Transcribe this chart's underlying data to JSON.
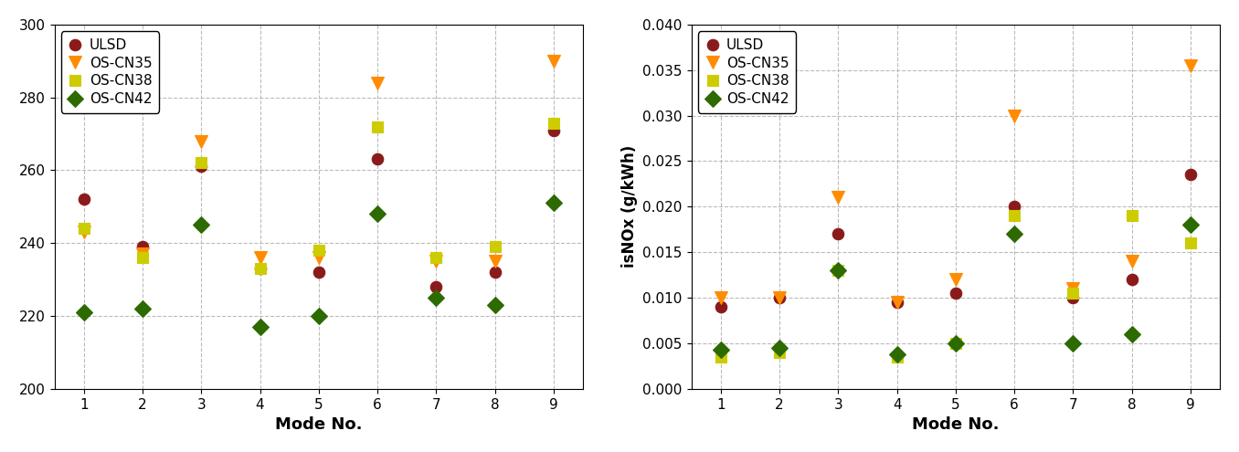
{
  "modes": [
    1,
    2,
    3,
    4,
    5,
    6,
    7,
    8,
    9
  ],
  "left_ylim": [
    200,
    300
  ],
  "left_yticks": [
    200,
    220,
    240,
    260,
    280,
    300
  ],
  "left_data": {
    "ULSD": [
      252,
      239,
      261,
      233,
      232,
      263,
      228,
      232,
      271
    ],
    "OS-CN35": [
      243,
      237,
      268,
      236,
      236,
      284,
      235,
      235,
      290
    ],
    "OS-CN38": [
      244,
      236,
      262,
      233,
      238,
      272,
      236,
      239,
      273
    ],
    "OS-CN42": [
      221,
      222,
      245,
      217,
      220,
      248,
      225,
      223,
      251
    ]
  },
  "right_ylabel": "isNOx (g/kWh)",
  "right_ylim": [
    0.0,
    0.04
  ],
  "right_yticks": [
    0.0,
    0.005,
    0.01,
    0.015,
    0.02,
    0.025,
    0.03,
    0.035,
    0.04
  ],
  "right_data": {
    "ULSD": [
      0.009,
      0.01,
      0.017,
      0.0095,
      0.0105,
      0.02,
      0.01,
      0.012,
      0.0235
    ],
    "OS-CN35": [
      0.01,
      0.01,
      0.021,
      0.0095,
      0.012,
      0.03,
      0.011,
      0.014,
      0.0355
    ],
    "OS-CN38": [
      0.0035,
      0.004,
      0.013,
      0.0035,
      0.005,
      0.019,
      0.0105,
      0.019,
      0.016
    ],
    "OS-CN42": [
      0.0043,
      0.0045,
      0.013,
      0.0038,
      0.005,
      0.017,
      0.005,
      0.006,
      0.018
    ]
  },
  "series_styles": {
    "ULSD": {
      "color": "#8B1A1A",
      "marker": "o",
      "markersize": 9
    },
    "OS-CN35": {
      "color": "#FF8C00",
      "marker": "v",
      "markersize": 10
    },
    "OS-CN38": {
      "color": "#CCCC00",
      "marker": "s",
      "markersize": 9
    },
    "OS-CN42": {
      "color": "#2D6A00",
      "marker": "D",
      "markersize": 9
    }
  },
  "xlabel": "Mode No.",
  "xlabel_fontsize": 13,
  "ylabel_fontsize": 12,
  "tick_fontsize": 11,
  "legend_fontsize": 11,
  "grid_color": "#BBBBBB",
  "grid_linestyle": "--",
  "bg_color": "#FFFFFF"
}
